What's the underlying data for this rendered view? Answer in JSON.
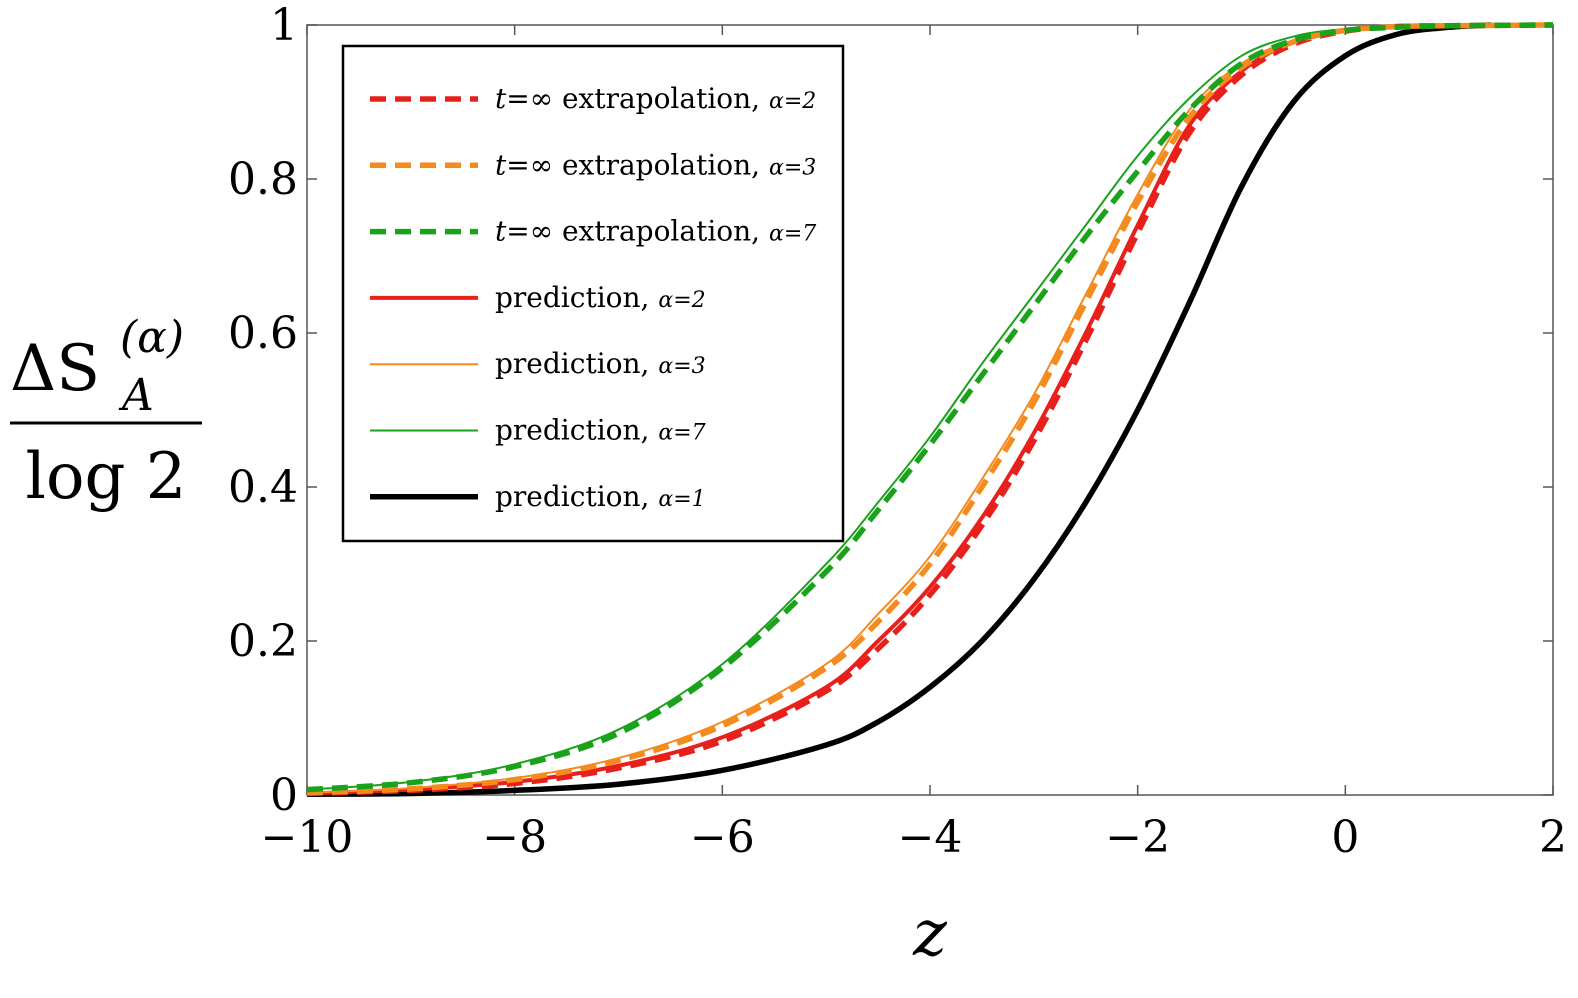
{
  "chart_data": {
    "type": "line",
    "xlabel": "z",
    "ylabel": {
      "numerator": "ΔS",
      "superscript": "(α)",
      "subscript": "A",
      "denominator": "log 2"
    },
    "xlim": [
      -10,
      2
    ],
    "ylim": [
      0,
      1
    ],
    "xticks": [
      -10,
      -8,
      -6,
      -4,
      -2,
      0,
      2
    ],
    "xtick_labels": [
      "−10",
      "−8",
      "−6",
      "−4",
      "−2",
      "0",
      "2"
    ],
    "yticks": [
      0,
      0.2,
      0.4,
      0.6,
      0.8,
      1
    ],
    "ytick_labels": [
      "0",
      "0.2",
      "0.4",
      "0.6",
      "0.8",
      "1"
    ],
    "legend_position": "top-left",
    "grid": false,
    "series": [
      {
        "name": "t=∞ extrapolation, α=2",
        "legend": {
          "prefix": "t",
          "mid": "=∞ extrapolation, ",
          "alpha": "α=2"
        },
        "color": "#e8201c",
        "style": "dashed",
        "weight": "thick",
        "x": [
          -10,
          -9,
          -8,
          -7,
          -6,
          -5,
          -4.5,
          -4,
          -3.5,
          -3,
          -2.5,
          -2,
          -1.5,
          -1,
          -0.5,
          0,
          0.5,
          1,
          2
        ],
        "y": [
          0.002,
          0.006,
          0.015,
          0.035,
          0.07,
          0.135,
          0.19,
          0.26,
          0.35,
          0.46,
          0.59,
          0.73,
          0.86,
          0.935,
          0.975,
          0.992,
          0.998,
          0.999,
          1.0
        ]
      },
      {
        "name": "t=∞ extrapolation, α=3",
        "legend": {
          "prefix": "t",
          "mid": "=∞ extrapolation, ",
          "alpha": "α=3"
        },
        "color": "#f58a1f",
        "style": "dashed",
        "weight": "thick",
        "x": [
          -10,
          -9,
          -8,
          -7,
          -6,
          -5,
          -4.5,
          -4,
          -3.5,
          -3,
          -2.5,
          -2,
          -1.5,
          -1,
          -0.5,
          0,
          0.5,
          1,
          2
        ],
        "y": [
          0.003,
          0.008,
          0.02,
          0.045,
          0.09,
          0.165,
          0.225,
          0.3,
          0.4,
          0.51,
          0.64,
          0.77,
          0.88,
          0.945,
          0.978,
          0.993,
          0.998,
          0.999,
          1.0
        ]
      },
      {
        "name": "t=∞ extrapolation, α=7",
        "legend": {
          "prefix": "t",
          "mid": "=∞ extrapolation, ",
          "alpha": "α=7"
        },
        "color": "#1aa31a",
        "style": "dashed",
        "weight": "thick",
        "x": [
          -10,
          -9,
          -8,
          -7,
          -6,
          -5,
          -4.5,
          -4,
          -3.5,
          -3,
          -2.5,
          -2,
          -1.5,
          -1,
          -0.5,
          0,
          0.5,
          1,
          2
        ],
        "y": [
          0.007,
          0.016,
          0.037,
          0.08,
          0.165,
          0.29,
          0.37,
          0.455,
          0.545,
          0.635,
          0.725,
          0.81,
          0.89,
          0.95,
          0.98,
          0.993,
          0.997,
          0.999,
          1.0
        ]
      },
      {
        "name": "prediction, α=2",
        "legend": {
          "prefix": "",
          "mid": "prediction, ",
          "alpha": "α=2"
        },
        "color": "#e8201c",
        "style": "solid",
        "weight": "medium",
        "x": [
          -10,
          -9,
          -8,
          -7,
          -6,
          -5,
          -4.5,
          -4,
          -3.5,
          -3,
          -2.5,
          -2,
          -1.5,
          -1,
          -0.5,
          0,
          0.5,
          1,
          2
        ],
        "y": [
          0.002,
          0.007,
          0.017,
          0.038,
          0.075,
          0.14,
          0.2,
          0.27,
          0.36,
          0.47,
          0.6,
          0.74,
          0.87,
          0.94,
          0.978,
          0.993,
          0.998,
          0.999,
          1.0
        ]
      },
      {
        "name": "prediction, α=3",
        "legend": {
          "prefix": "",
          "mid": "prediction, ",
          "alpha": "α=3"
        },
        "color": "#f58a1f",
        "style": "solid",
        "weight": "thin",
        "x": [
          -10,
          -9,
          -8,
          -7,
          -6,
          -5,
          -4.5,
          -4,
          -3.5,
          -3,
          -2.5,
          -2,
          -1.5,
          -1,
          -0.5,
          0,
          0.5,
          1,
          2
        ],
        "y": [
          0.003,
          0.009,
          0.022,
          0.048,
          0.095,
          0.17,
          0.235,
          0.31,
          0.41,
          0.52,
          0.65,
          0.78,
          0.89,
          0.95,
          0.98,
          0.994,
          0.998,
          0.999,
          1.0
        ]
      },
      {
        "name": "prediction, α=7",
        "legend": {
          "prefix": "",
          "mid": "prediction, ",
          "alpha": "α=7"
        },
        "color": "#1aa31a",
        "style": "solid",
        "weight": "thin",
        "x": [
          -10,
          -9,
          -8,
          -7,
          -6,
          -5,
          -4.5,
          -4,
          -3.5,
          -3,
          -2.5,
          -2,
          -1.5,
          -1,
          -0.5,
          0,
          0.5,
          1,
          2
        ],
        "y": [
          0.007,
          0.017,
          0.04,
          0.085,
          0.17,
          0.3,
          0.38,
          0.465,
          0.56,
          0.65,
          0.74,
          0.83,
          0.905,
          0.96,
          0.985,
          0.995,
          0.998,
          0.999,
          1.0
        ]
      },
      {
        "name": "prediction, α=1",
        "legend": {
          "prefix": "",
          "mid": "prediction, ",
          "alpha": "α=1"
        },
        "color": "#000000",
        "style": "solid",
        "weight": "thick",
        "x": [
          -10,
          -9,
          -8,
          -7,
          -6,
          -5,
          -4.5,
          -4,
          -3.5,
          -3,
          -2.5,
          -2,
          -1.5,
          -1,
          -0.5,
          0,
          0.5,
          1,
          1.4
        ],
        "y": [
          0.001,
          0.002,
          0.006,
          0.014,
          0.032,
          0.065,
          0.095,
          0.14,
          0.2,
          0.28,
          0.38,
          0.5,
          0.64,
          0.79,
          0.9,
          0.96,
          0.988,
          0.997,
          1.0
        ]
      }
    ]
  }
}
